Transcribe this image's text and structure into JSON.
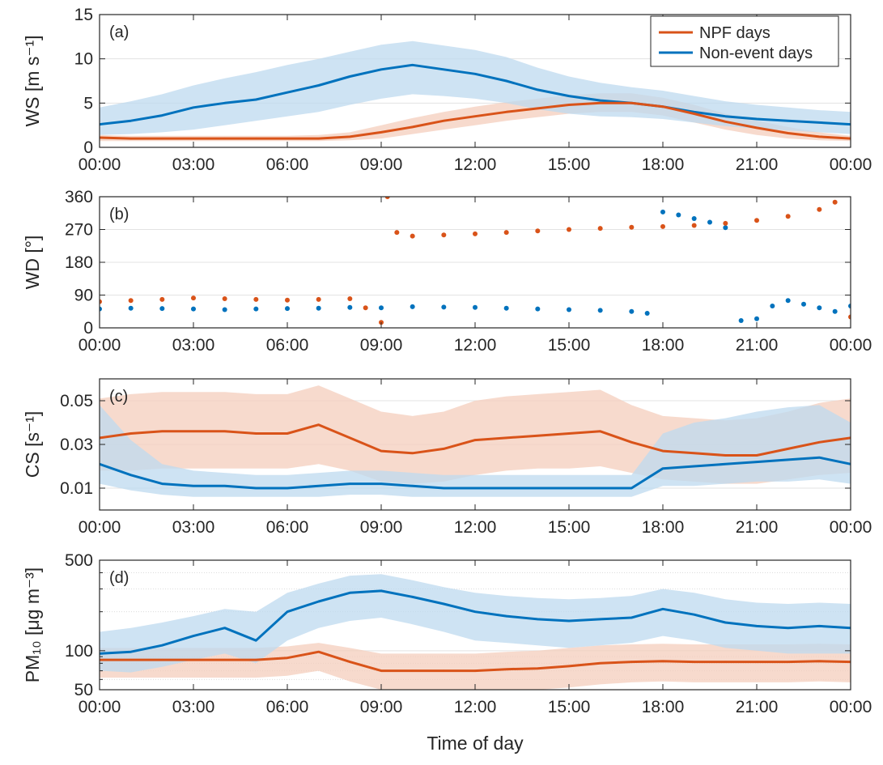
{
  "figure": {
    "xlabel": "Time of day",
    "colors": {
      "npf": "#d95319",
      "nonevent": "#0072bd",
      "npf_band": "#f4cdbc",
      "nonevent_band": "#bdd9ef"
    }
  },
  "chart_data": [
    {
      "type": "line",
      "panel_label": "(a)",
      "ylabel": "WS [m s⁻¹]",
      "ylim": [
        0,
        15
      ],
      "yticks": [
        0,
        5,
        10,
        15
      ],
      "xlim": [
        0,
        24
      ],
      "xticks": [
        "00:00",
        "03:00",
        "06:00",
        "09:00",
        "12:00",
        "15:00",
        "18:00",
        "21:00",
        "00:00"
      ],
      "grid": true,
      "legend": {
        "placement": "top-right",
        "entries": [
          "NPF days",
          "Non-event days"
        ]
      },
      "x": [
        0,
        1,
        2,
        3,
        4,
        5,
        6,
        7,
        8,
        9,
        10,
        11,
        12,
        13,
        14,
        15,
        16,
        17,
        18,
        19,
        20,
        21,
        22,
        23,
        24
      ],
      "series": [
        {
          "name": "NPF days",
          "values": [
            1.1,
            1.0,
            1.0,
            1.0,
            1.0,
            1.0,
            1.0,
            1.0,
            1.2,
            1.7,
            2.3,
            3.0,
            3.5,
            4.0,
            4.4,
            4.8,
            5.0,
            5.0,
            4.6,
            3.8,
            2.9,
            2.2,
            1.6,
            1.2,
            1.0
          ],
          "band_low": [
            0.7,
            0.7,
            0.7,
            0.7,
            0.7,
            0.7,
            0.7,
            0.7,
            0.8,
            1.0,
            1.5,
            2.0,
            2.5,
            3.0,
            3.4,
            3.8,
            4.0,
            4.0,
            3.6,
            2.8,
            2.0,
            1.4,
            1.0,
            0.8,
            0.7
          ],
          "band_high": [
            1.4,
            1.3,
            1.3,
            1.3,
            1.3,
            1.3,
            1.3,
            1.4,
            1.7,
            2.5,
            3.3,
            4.0,
            4.6,
            5.1,
            5.5,
            5.9,
            6.1,
            6.1,
            5.6,
            4.8,
            3.8,
            3.0,
            2.3,
            1.7,
            1.3
          ]
        },
        {
          "name": "Non-event days",
          "values": [
            2.6,
            3.0,
            3.6,
            4.5,
            5.0,
            5.4,
            6.2,
            7.0,
            8.0,
            8.8,
            9.3,
            8.8,
            8.3,
            7.5,
            6.5,
            5.8,
            5.3,
            5.0,
            4.6,
            4.0,
            3.5,
            3.2,
            3.0,
            2.8,
            2.6
          ],
          "band_low": [
            1.4,
            1.5,
            1.7,
            2.0,
            2.5,
            3.0,
            3.5,
            4.0,
            4.8,
            5.5,
            6.0,
            5.8,
            5.5,
            5.0,
            4.3,
            3.8,
            3.5,
            3.4,
            3.2,
            2.8,
            2.4,
            2.1,
            1.9,
            1.7,
            1.5
          ],
          "band_high": [
            4.5,
            5.2,
            6.0,
            7.0,
            7.8,
            8.5,
            9.3,
            10.0,
            10.8,
            11.6,
            12.0,
            11.5,
            11.0,
            10.2,
            9.0,
            8.0,
            7.3,
            6.8,
            6.4,
            5.8,
            5.2,
            4.8,
            4.5,
            4.2,
            4.0
          ]
        }
      ]
    },
    {
      "type": "scatter",
      "panel_label": "(b)",
      "ylabel": "WD [°]",
      "ylim": [
        0,
        360
      ],
      "yticks": [
        0,
        90,
        180,
        270,
        360
      ],
      "xlim": [
        0,
        24
      ],
      "xticks": [
        "00:00",
        "03:00",
        "06:00",
        "09:00",
        "12:00",
        "15:00",
        "18:00",
        "21:00",
        "00:00"
      ],
      "grid": true,
      "series": [
        {
          "name": "NPF days",
          "x": [
            0,
            1,
            2,
            3,
            4,
            5,
            6,
            7,
            8,
            8.5,
            9.0,
            9.2,
            9.5,
            10,
            11,
            12,
            13,
            14,
            15,
            16,
            17,
            18,
            19,
            20,
            21,
            22,
            23,
            23.5,
            24
          ],
          "values": [
            72,
            75,
            78,
            82,
            80,
            78,
            76,
            78,
            80,
            55,
            15,
            360,
            262,
            252,
            255,
            258,
            262,
            266,
            270,
            273,
            276,
            278,
            281,
            287,
            295,
            306,
            325,
            345,
            30
          ]
        },
        {
          "name": "Non-event days",
          "x": [
            0,
            1,
            2,
            3,
            4,
            5,
            6,
            7,
            8,
            9,
            10,
            11,
            12,
            13,
            14,
            15,
            16,
            17,
            17.5,
            18.0,
            18.5,
            19.0,
            19.5,
            20.0,
            20.5,
            21.0,
            21.5,
            22.0,
            22.5,
            23.0,
            23.5,
            24.0
          ],
          "values": [
            52,
            54,
            53,
            52,
            50,
            52,
            53,
            54,
            56,
            55,
            58,
            57,
            56,
            54,
            52,
            50,
            48,
            45,
            40,
            318,
            310,
            300,
            290,
            275,
            20,
            25,
            60,
            75,
            65,
            55,
            45,
            60
          ]
        }
      ]
    },
    {
      "type": "line",
      "panel_label": "(c)",
      "ylabel": "CS [s⁻¹]",
      "ylim": [
        0,
        0.06
      ],
      "yticks": [
        0.01,
        0.03,
        0.05
      ],
      "xlim": [
        0,
        24
      ],
      "xticks": [
        "00:00",
        "03:00",
        "06:00",
        "09:00",
        "12:00",
        "15:00",
        "18:00",
        "21:00",
        "00:00"
      ],
      "grid": true,
      "x": [
        0,
        1,
        2,
        3,
        4,
        5,
        6,
        7,
        8,
        9,
        10,
        11,
        12,
        13,
        14,
        15,
        16,
        17,
        18,
        19,
        20,
        21,
        22,
        23,
        24
      ],
      "series": [
        {
          "name": "NPF days",
          "values": [
            0.033,
            0.035,
            0.036,
            0.036,
            0.036,
            0.035,
            0.035,
            0.039,
            0.033,
            0.027,
            0.026,
            0.028,
            0.032,
            0.033,
            0.034,
            0.035,
            0.036,
            0.031,
            0.027,
            0.026,
            0.025,
            0.025,
            0.028,
            0.031,
            0.033
          ],
          "band_low": [
            0.018,
            0.018,
            0.019,
            0.019,
            0.019,
            0.019,
            0.019,
            0.021,
            0.018,
            0.013,
            0.012,
            0.013,
            0.016,
            0.018,
            0.019,
            0.019,
            0.02,
            0.017,
            0.014,
            0.013,
            0.012,
            0.012,
            0.014,
            0.016,
            0.017
          ],
          "band_high": [
            0.051,
            0.053,
            0.054,
            0.054,
            0.054,
            0.053,
            0.053,
            0.057,
            0.051,
            0.045,
            0.043,
            0.045,
            0.05,
            0.052,
            0.053,
            0.054,
            0.055,
            0.048,
            0.043,
            0.042,
            0.041,
            0.042,
            0.045,
            0.049,
            0.051
          ]
        },
        {
          "name": "Non-event days",
          "values": [
            0.021,
            0.016,
            0.012,
            0.011,
            0.011,
            0.01,
            0.01,
            0.011,
            0.012,
            0.012,
            0.011,
            0.01,
            0.01,
            0.01,
            0.01,
            0.01,
            0.01,
            0.01,
            0.019,
            0.02,
            0.021,
            0.022,
            0.023,
            0.024,
            0.021
          ],
          "band_low": [
            0.012,
            0.009,
            0.007,
            0.006,
            0.006,
            0.006,
            0.006,
            0.006,
            0.007,
            0.007,
            0.006,
            0.006,
            0.006,
            0.006,
            0.006,
            0.006,
            0.006,
            0.006,
            0.011,
            0.011,
            0.012,
            0.013,
            0.013,
            0.014,
            0.012
          ],
          "band_high": [
            0.048,
            0.032,
            0.021,
            0.018,
            0.017,
            0.016,
            0.016,
            0.017,
            0.018,
            0.018,
            0.017,
            0.016,
            0.016,
            0.016,
            0.016,
            0.016,
            0.016,
            0.016,
            0.035,
            0.04,
            0.042,
            0.045,
            0.047,
            0.048,
            0.04
          ]
        }
      ]
    },
    {
      "type": "line",
      "panel_label": "(d)",
      "ylabel": "PM₁₀ [μg m⁻³]",
      "yscale": "log",
      "ylim": [
        50,
        500
      ],
      "yticks": [
        50,
        100,
        500
      ],
      "xlim": [
        0,
        24
      ],
      "xticks": [
        "00:00",
        "03:00",
        "06:00",
        "09:00",
        "12:00",
        "15:00",
        "18:00",
        "21:00",
        "00:00"
      ],
      "grid": true,
      "x": [
        0,
        1,
        2,
        3,
        4,
        5,
        6,
        7,
        8,
        9,
        10,
        11,
        12,
        13,
        14,
        15,
        16,
        17,
        18,
        19,
        20,
        21,
        22,
        23,
        24
      ],
      "series": [
        {
          "name": "NPF days",
          "values": [
            85,
            85,
            85,
            85,
            85,
            85,
            88,
            98,
            82,
            70,
            70,
            70,
            70,
            72,
            73,
            76,
            80,
            82,
            83,
            82,
            82,
            82,
            82,
            83,
            82
          ],
          "band_low": [
            62,
            62,
            62,
            62,
            62,
            62,
            64,
            70,
            58,
            50,
            50,
            50,
            50,
            50,
            50,
            52,
            55,
            57,
            58,
            57,
            57,
            57,
            57,
            58,
            57
          ],
          "band_high": [
            105,
            105,
            105,
            105,
            105,
            105,
            108,
            115,
            105,
            95,
            95,
            95,
            95,
            98,
            100,
            105,
            110,
            112,
            113,
            112,
            112,
            112,
            112,
            113,
            112
          ]
        },
        {
          "name": "Non-event days",
          "values": [
            95,
            98,
            110,
            130,
            150,
            120,
            200,
            240,
            280,
            290,
            260,
            230,
            200,
            185,
            175,
            170,
            175,
            180,
            210,
            190,
            165,
            155,
            150,
            155,
            150
          ],
          "band_low": [
            70,
            68,
            75,
            85,
            95,
            80,
            120,
            150,
            170,
            180,
            160,
            140,
            120,
            115,
            110,
            105,
            110,
            115,
            130,
            120,
            105,
            100,
            95,
            95,
            95
          ],
          "band_high": [
            140,
            150,
            165,
            185,
            210,
            200,
            280,
            330,
            380,
            390,
            350,
            310,
            280,
            265,
            255,
            250,
            255,
            265,
            300,
            280,
            250,
            235,
            230,
            235,
            230
          ]
        }
      ]
    }
  ]
}
